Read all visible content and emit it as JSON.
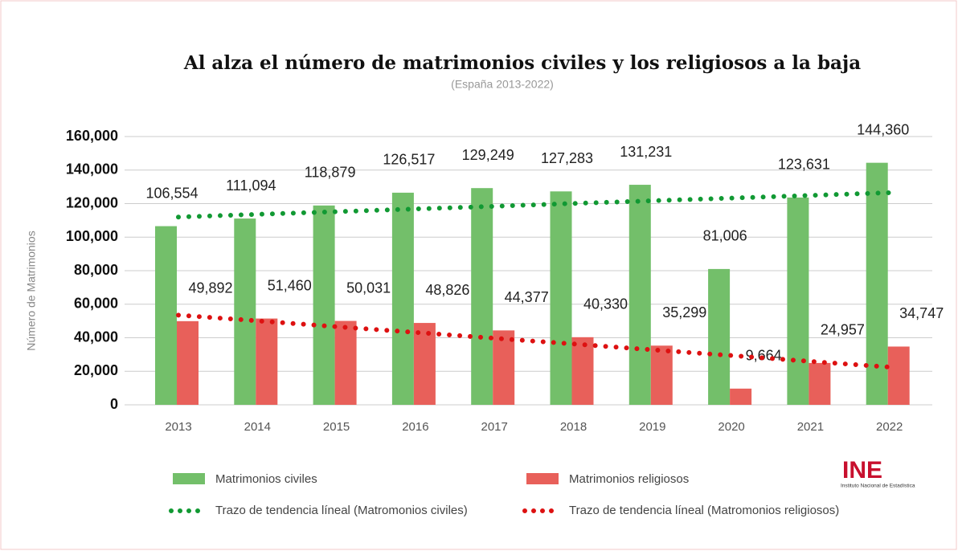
{
  "chart_data": {
    "type": "bar",
    "title": "Al alza el número de matrimonios civiles y los religiosos a la baja",
    "subtitle": "(España 2013-2022)",
    "y_axis_label": "Número de Matrimonios",
    "categories": [
      "2013",
      "2014",
      "2015",
      "2016",
      "2017",
      "2018",
      "2019",
      "2020",
      "2021",
      "2022"
    ],
    "series": [
      {
        "name": "Matrimonios civiles",
        "color": "#73bf6a",
        "values": [
          106554,
          111094,
          118879,
          126517,
          129249,
          127283,
          131231,
          81006,
          123631,
          144360
        ],
        "value_labels": [
          "106,554",
          "111,094",
          "118,879",
          "126,517",
          "129,249",
          "127,283",
          "131,231",
          "81,006",
          "123,631",
          "144,360"
        ]
      },
      {
        "name": "Matrimonios religiosos",
        "color": "#e8605a",
        "values": [
          49892,
          51460,
          50031,
          48826,
          44377,
          40330,
          35299,
          9664,
          24957,
          34747
        ],
        "value_labels": [
          "49,892",
          "51,460",
          "50,031",
          "48,826",
          "44,377",
          "40,330",
          "35,299",
          "9,664",
          "24,957",
          "34,747"
        ]
      }
    ],
    "trendlines": [
      {
        "name": "Trazo de tendencia líneal (Matromonios civiles)",
        "color": "#119933",
        "values": [
          112000,
          113600,
          115200,
          116800,
          118400,
          120100,
          121700,
          123300,
          124900,
          126500
        ]
      },
      {
        "name": "Trazo de tendencia líneal (Matromonios religiosos)",
        "color": "#dd1111",
        "values": [
          53500,
          50100,
          46600,
          43200,
          39700,
          36300,
          32800,
          29400,
          25900,
          22500
        ]
      }
    ],
    "ylim": [
      0,
      160000
    ],
    "yticks": [
      0,
      {
        "value": 20000,
        "label": "20,000"
      },
      {
        "value": 40000,
        "label": "40,000"
      },
      {
        "value": 60000,
        "label": "60,000"
      },
      {
        "value": 80000,
        "label": "80,000"
      },
      {
        "value": 100000,
        "label": "100,000"
      },
      {
        "value": 120000,
        "label": "120,000"
      },
      {
        "value": 140000,
        "label": "140,000"
      },
      {
        "value": 160000,
        "label": "160,000"
      }
    ],
    "grid": true,
    "logo": {
      "text": "INE",
      "caption": "Instituto Nacional de Estadística"
    }
  }
}
